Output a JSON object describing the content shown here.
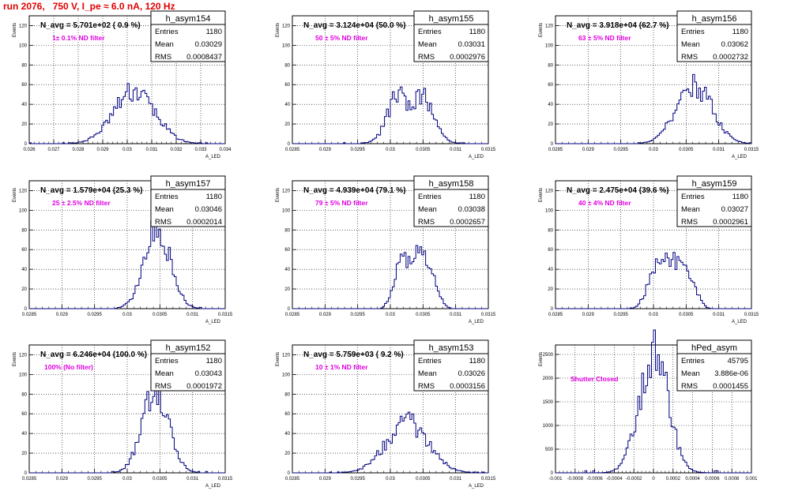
{
  "page": {
    "title": "run 2076,   750 V, I_pe ≈ 6.0 nA, 120 Hz"
  },
  "colors": {
    "histogram": "#000080",
    "grid": "#000000",
    "annotation": "#e000e0",
    "title": "#e00000"
  },
  "stat_labels": {
    "entries": "Entries",
    "mean": "Mean",
    "rms": "RMS"
  },
  "chart_data": [
    {
      "type": "histogram",
      "name": "h_asym154",
      "navg": "N_avg = 5.701e+02 ( 0.9 %)",
      "note": "1± 0.1% ND filter",
      "entries": "1180",
      "mean": "0.03029",
      "rms": "0.0008437",
      "xlabel": "A_LED",
      "ylabel": "Events",
      "xlim": [
        0.026,
        0.034
      ],
      "ylim": [
        0,
        130
      ],
      "xticks": [
        "0.026",
        "0.027",
        "0.028",
        "0.029",
        "0.03",
        "0.031",
        "0.032",
        "0.033",
        "0.034"
      ],
      "yticks": [
        "0",
        "20",
        "40",
        "60",
        "80",
        "100",
        "120"
      ],
      "mu": 0.03029,
      "sigma": 0.00084,
      "peak": 53,
      "bins": 100
    },
    {
      "type": "histogram",
      "name": "h_asym155",
      "navg": "N_avg = 3.124e+04 (50.0 %)",
      "note": "50 ± 5% ND filter",
      "entries": "1180",
      "mean": "0.03031",
      "rms": "0.0002976",
      "xlabel": "A_LED",
      "ylabel": "Events",
      "xlim": [
        0.0285,
        0.0315
      ],
      "ylim": [
        0,
        130
      ],
      "xticks": [
        "0.0285",
        "0.029",
        "0.0295",
        "0.03",
        "0.0305",
        "0.031",
        "0.0315"
      ],
      "yticks": [
        "0",
        "20",
        "40",
        "60",
        "80",
        "100",
        "120"
      ],
      "mu": 0.03031,
      "sigma": 0.0003,
      "peak": 52,
      "bins": 100,
      "bimodal": true
    },
    {
      "type": "histogram",
      "name": "h_asym156",
      "navg": "N_avg = 3.918e+04 (62.7 %)",
      "note": "63 ± 5% ND filter",
      "entries": "1180",
      "mean": "0.03062",
      "rms": "0.0002732",
      "xlabel": "A_LED",
      "ylabel": "Events",
      "xlim": [
        0.0285,
        0.0315
      ],
      "ylim": [
        0,
        130
      ],
      "xticks": [
        "0.0285",
        "0.029",
        "0.0295",
        "0.03",
        "0.0305",
        "0.031",
        "0.0315"
      ],
      "yticks": [
        "0",
        "20",
        "40",
        "60",
        "80",
        "100",
        "120"
      ],
      "mu": 0.03062,
      "sigma": 0.00027,
      "peak": 60,
      "bins": 100
    },
    {
      "type": "histogram",
      "name": "h_asym157",
      "navg": "N_avg = 1.579e+04 (25.3 %)",
      "note": "25 ± 2.5% ND filter",
      "entries": "1180",
      "mean": "0.03046",
      "rms": "0.0002014",
      "xlabel": "A_LED",
      "ylabel": "Events",
      "xlim": [
        0.0285,
        0.0315
      ],
      "ylim": [
        0,
        130
      ],
      "xticks": [
        "0.0285",
        "0.029",
        "0.0295",
        "0.03",
        "0.0305",
        "0.031",
        "0.0315"
      ],
      "yticks": [
        "0",
        "20",
        "40",
        "60",
        "80",
        "100",
        "120"
      ],
      "mu": 0.03046,
      "sigma": 0.0002,
      "peak": 81,
      "bins": 100
    },
    {
      "type": "histogram",
      "name": "h_asym158",
      "navg": "N_avg = 4.939e+04 (79.1 %)",
      "note": "79 ± 5% ND filter",
      "entries": "1180",
      "mean": "0.03038",
      "rms": "0.0002657",
      "xlabel": "A_LED",
      "ylabel": "Events",
      "xlim": [
        0.0285,
        0.0315
      ],
      "ylim": [
        0,
        130
      ],
      "xticks": [
        "0.0285",
        "0.029",
        "0.0295",
        "0.03",
        "0.0305",
        "0.031",
        "0.0315"
      ],
      "yticks": [
        "0",
        "20",
        "40",
        "60",
        "80",
        "100",
        "120"
      ],
      "mu": 0.03038,
      "sigma": 0.00027,
      "peak": 54,
      "bins": 100,
      "flat": true
    },
    {
      "type": "histogram",
      "name": "h_asym159",
      "navg": "N_avg = 2.475e+04 (39.6 %)",
      "note": "40 ± 4% ND filter",
      "entries": "1180",
      "mean": "0.03027",
      "rms": "0.0002961",
      "xlabel": "A_LED",
      "ylabel": "Events",
      "xlim": [
        0.0285,
        0.0315
      ],
      "ylim": [
        0,
        130
      ],
      "xticks": [
        "0.0285",
        "0.029",
        "0.0295",
        "0.03",
        "0.0305",
        "0.031",
        "0.0315"
      ],
      "yticks": [
        "0",
        "20",
        "40",
        "60",
        "80",
        "100",
        "120"
      ],
      "mu": 0.03027,
      "sigma": 0.0003,
      "peak": 47,
      "bins": 100,
      "flat": true
    },
    {
      "type": "histogram",
      "name": "h_asym152",
      "navg": "N_avg = 6.246e+04 (100.0 %)",
      "note": "100% (No filter)",
      "entries": "1180",
      "mean": "0.03043",
      "rms": "0.0001972",
      "xlabel": "A_LED",
      "ylabel": "Events",
      "xlim": [
        0.0285,
        0.0315
      ],
      "ylim": [
        0,
        130
      ],
      "xticks": [
        "0.0285",
        "0.029",
        "0.0295",
        "0.03",
        "0.0305",
        "0.031",
        "0.0315"
      ],
      "yticks": [
        "0",
        "20",
        "40",
        "60",
        "80",
        "100",
        "120"
      ],
      "mu": 0.03043,
      "sigma": 0.0002,
      "peak": 85,
      "bins": 100
    },
    {
      "type": "histogram",
      "name": "h_asym153",
      "navg": "N_avg = 5.759e+03 ( 9.2 %)",
      "note": "10 ± 1% ND filter",
      "entries": "1180",
      "mean": "0.03026",
      "rms": "0.0003156",
      "xlabel": "A_LED",
      "ylabel": "Events",
      "xlim": [
        0.0285,
        0.0315
      ],
      "ylim": [
        0,
        130
      ],
      "xticks": [
        "0.0285",
        "0.029",
        "0.0295",
        "0.03",
        "0.0305",
        "0.031",
        "0.0315"
      ],
      "yticks": [
        "0",
        "20",
        "40",
        "60",
        "80",
        "100",
        "120"
      ],
      "mu": 0.03026,
      "sigma": 0.00032,
      "peak": 51,
      "bins": 100
    },
    {
      "type": "histogram",
      "name": "hPed_asym",
      "navg": "",
      "note": "Shutter Closed",
      "entries": "45795",
      "mean": "3.886e-06",
      "rms": "0.0001455",
      "xlabel": "",
      "ylabel": "Events",
      "xlim": [
        -0.001,
        0.001
      ],
      "ylim": [
        0,
        2700
      ],
      "xticks": [
        "-0.001",
        "-0.0008",
        "-0.0006",
        "-0.0004",
        "-0.0002",
        "0",
        "0.0002",
        "0.0004",
        "0.0006",
        "0.0008",
        "0.001"
      ],
      "yticks": [
        "0",
        "500",
        "1000",
        "1500",
        "2000",
        "2500"
      ],
      "mu": 3.9e-06,
      "sigma": 0.000146,
      "peak": 2580,
      "bins": 100
    }
  ]
}
